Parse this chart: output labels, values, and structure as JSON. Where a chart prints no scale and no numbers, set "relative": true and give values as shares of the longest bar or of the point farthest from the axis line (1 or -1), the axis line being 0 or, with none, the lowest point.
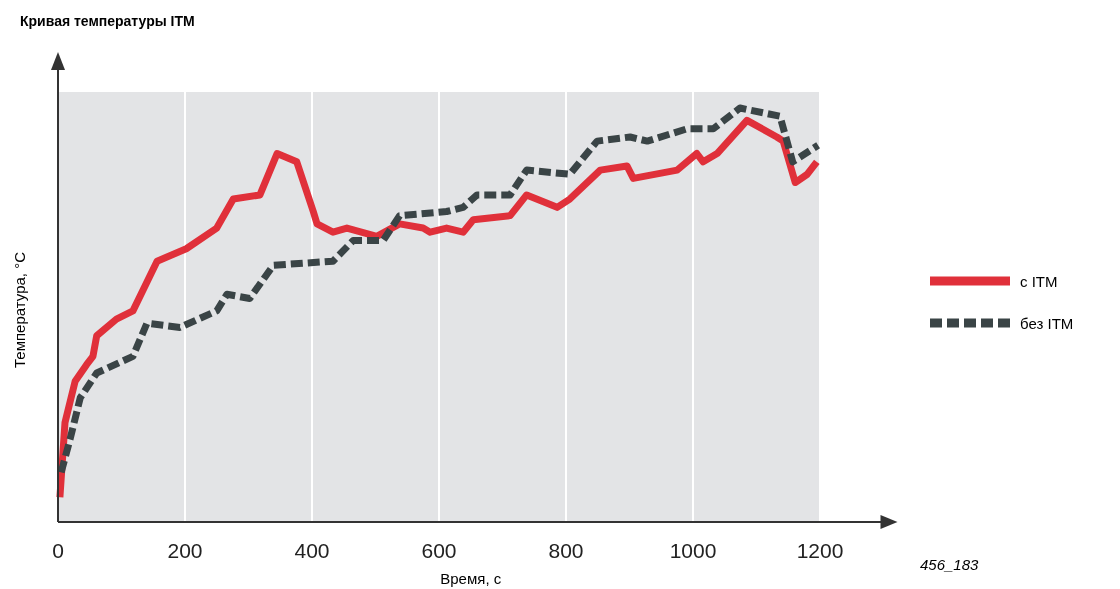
{
  "chart_data": {
    "type": "line",
    "title": "Кривая температуры ITM",
    "xlabel": "Время, с",
    "ylabel": "Температура, °C",
    "annotations": [
      "456_183"
    ],
    "relative": true,
    "xlim": [
      0,
      1300
    ],
    "xticks": [
      0,
      200,
      400,
      600,
      800,
      1000,
      1200
    ],
    "grid": "x",
    "legend": "right",
    "series": [
      {
        "name": "с ITM",
        "color": "#e0303a",
        "line_style": "solid",
        "x": [
          3,
          11,
          27,
          45,
          55,
          61,
          92,
          118,
          156,
          202,
          250,
          276,
          318,
          345,
          376,
          402,
          408,
          433,
          455,
          502,
          538,
          575,
          586,
          612,
          638,
          654,
          712,
          738,
          786,
          806,
          854,
          896,
          906,
          975,
          1006,
          1016,
          1038,
          1085,
          1132,
          1142,
          1161,
          1180,
          1195
        ],
        "values": [
          0.06,
          0.24,
          0.34,
          0.38,
          0.4,
          0.45,
          0.49,
          0.51,
          0.63,
          0.66,
          0.71,
          0.78,
          0.79,
          0.89,
          0.87,
          0.75,
          0.72,
          0.7,
          0.71,
          0.69,
          0.72,
          0.71,
          0.7,
          0.71,
          0.7,
          0.73,
          0.74,
          0.79,
          0.76,
          0.78,
          0.85,
          0.86,
          0.83,
          0.85,
          0.89,
          0.87,
          0.89,
          0.97,
          0.93,
          0.92,
          0.82,
          0.84,
          0.87
        ]
      },
      {
        "name": "без ITM",
        "color": "#3a4446",
        "line_style": "dashed",
        "x": [
          5,
          19,
          35,
          61,
          118,
          140,
          192,
          250,
          266,
          302,
          339,
          433,
          465,
          512,
          538,
          612,
          638,
          660,
          712,
          738,
          806,
          849,
          901,
          928,
          991,
          1032,
          1074,
          1137,
          1157,
          1197
        ],
        "values": [
          0.12,
          0.2,
          0.3,
          0.36,
          0.4,
          0.48,
          0.47,
          0.51,
          0.55,
          0.54,
          0.62,
          0.63,
          0.68,
          0.68,
          0.74,
          0.75,
          0.76,
          0.79,
          0.79,
          0.85,
          0.84,
          0.92,
          0.93,
          0.92,
          0.95,
          0.95,
          1,
          0.98,
          0.87,
          0.91
        ]
      }
    ]
  }
}
